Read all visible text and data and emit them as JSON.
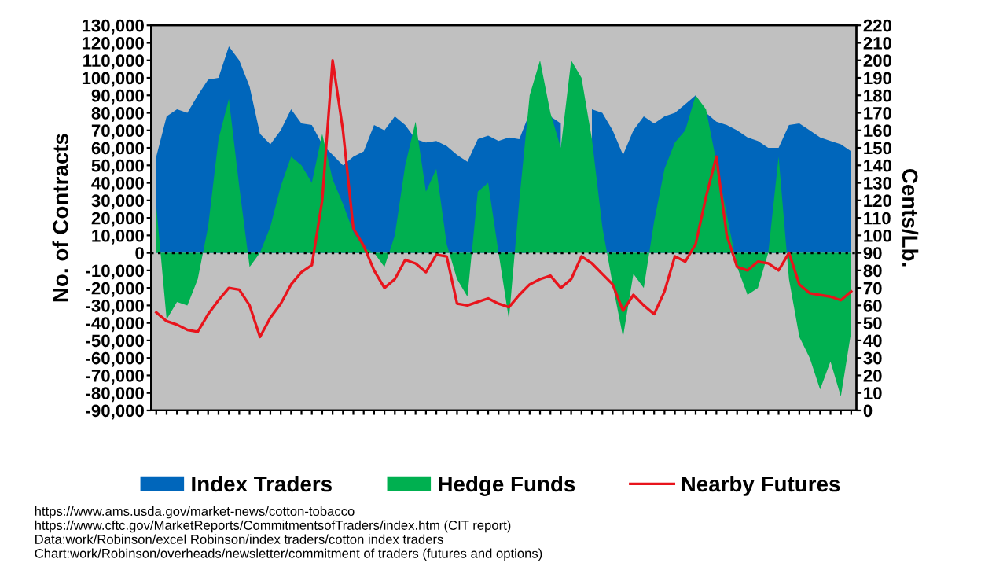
{
  "chart_data": {
    "type": "area",
    "ylabel": "No. of Contracts",
    "y2label": "Cents/Lb.",
    "categories": [
      null,
      null,
      null,
      null,
      null,
      null,
      null,
      null,
      null,
      null,
      null,
      null,
      null,
      null,
      null,
      null,
      null,
      null,
      null,
      null,
      null,
      null,
      null,
      null,
      null,
      null,
      null,
      null,
      null,
      null,
      null,
      null,
      null,
      null,
      null,
      null,
      null,
      null,
      null,
      null,
      null,
      null,
      null,
      null,
      null,
      null,
      null,
      null,
      null,
      null,
      null,
      null,
      null,
      null,
      null,
      null,
      null,
      null,
      null,
      null,
      null,
      null,
      null,
      null,
      null,
      null,
      null,
      null
    ],
    "series": [
      {
        "name": "Index Traders",
        "color": "#0066bb",
        "values": [
          55000,
          78000,
          82000,
          80000,
          90000,
          99000,
          100000,
          118000,
          110000,
          95000,
          68000,
          62000,
          70000,
          82000,
          74000,
          73000,
          62000,
          56000,
          50000,
          55000,
          58000,
          73000,
          70000,
          78000,
          73000,
          65000,
          63000,
          64000,
          61000,
          56000,
          52000,
          65000,
          67000,
          64000,
          66000,
          65000,
          80000,
          null,
          78000,
          74000,
          null,
          null,
          82000,
          80000,
          70000,
          56000,
          70000,
          78000,
          74000,
          78000,
          80000,
          85000,
          90000,
          80000,
          75000,
          73000,
          70000,
          66000,
          64000,
          60000,
          60000,
          73000,
          74000,
          70000,
          66000,
          64000,
          62000,
          58000
        ]
      },
      {
        "name": "Hedge Funds",
        "color": "#00b050",
        "values": [
          27000,
          -38000,
          -28000,
          -30000,
          -15000,
          15000,
          65000,
          88000,
          38000,
          -8000,
          0,
          15000,
          38000,
          55000,
          50000,
          40000,
          68000,
          42000,
          28000,
          12000,
          3000,
          0,
          -8000,
          10000,
          50000,
          75000,
          35000,
          48000,
          5000,
          -15000,
          -25000,
          35000,
          40000,
          0,
          -38000,
          30000,
          90000,
          110000,
          80000,
          60000,
          110000,
          100000,
          65000,
          15000,
          -18000,
          -48000,
          -12000,
          -20000,
          18000,
          48000,
          63000,
          70000,
          90000,
          82000,
          52000,
          22000,
          -8000,
          -24000,
          -20000,
          0,
          55000,
          -15000,
          -48000,
          -60000,
          -78000,
          -62000,
          -82000,
          -45000
        ]
      },
      {
        "name": "Nearby Futures",
        "type": "line",
        "axis": "y2",
        "color": "#e8141c",
        "values": [
          56,
          51,
          49,
          46,
          45,
          55,
          63,
          70,
          69,
          60,
          42,
          53,
          61,
          72,
          79,
          83,
          120,
          200,
          160,
          104,
          94,
          80,
          70,
          75,
          86,
          84,
          79,
          89,
          88,
          61,
          60,
          62,
          64,
          61,
          59,
          66,
          72,
          75,
          77,
          70,
          75,
          88,
          84,
          78,
          72,
          57,
          66,
          60,
          55,
          68,
          88,
          85,
          95,
          122,
          145,
          100,
          82,
          80,
          85,
          84,
          80,
          90,
          72,
          67,
          66,
          65,
          63,
          68
        ]
      }
    ],
    "ylim": [
      -90000,
      130000
    ],
    "yticks": [
      {
        "value": -90000,
        "label": "-90,000"
      },
      {
        "value": -80000,
        "label": "-80,000"
      },
      {
        "value": -70000,
        "label": "-70,000"
      },
      {
        "value": -60000,
        "label": "-60,000"
      },
      {
        "value": -50000,
        "label": "-50,000"
      },
      {
        "value": -40000,
        "label": "-40,000"
      },
      {
        "value": -30000,
        "label": "-30,000"
      },
      {
        "value": -20000,
        "label": "-20,000"
      },
      {
        "value": -10000,
        "label": "-10,000"
      },
      0,
      {
        "value": 10000,
        "label": "10,000"
      },
      {
        "value": 20000,
        "label": "20,000"
      },
      {
        "value": 30000,
        "label": "30,000"
      },
      {
        "value": 40000,
        "label": "40,000"
      },
      {
        "value": 50000,
        "label": "50,000"
      },
      {
        "value": 60000,
        "label": "60,000"
      },
      {
        "value": 70000,
        "label": "70,000"
      },
      {
        "value": 80000,
        "label": "80,000"
      },
      {
        "value": 90000,
        "label": "90,000"
      },
      {
        "value": 100000,
        "label": "100,000"
      },
      {
        "value": 110000,
        "label": "110,000"
      },
      {
        "value": 120000,
        "label": "120,000"
      },
      {
        "value": 130000,
        "label": "130,000"
      }
    ],
    "y2lim": [
      0,
      220
    ],
    "y2ticks": [
      0,
      10,
      20,
      30,
      40,
      50,
      60,
      70,
      80,
      90,
      100,
      110,
      120,
      130,
      140,
      150,
      160,
      170,
      180,
      190,
      200,
      210,
      220
    ],
    "ref_lines": [
      {
        "axis": "y",
        "value": 0,
        "color": "#000000",
        "line_style": "dotted"
      }
    ],
    "legend": "bottom",
    "grid": false,
    "annotations": [
      "https://www.ams.usda.gov/market-news/cotton-tobacco",
      "https://www.cftc.gov/MarketReports/CommitmentsofTraders/index.htm (CIT report)",
      "Data:work/Robinson/excel Robinson/index traders/cotton index traders",
      "Chart:work/Robinson/overheads/newsletter/commitment of traders (futures and options)"
    ]
  }
}
